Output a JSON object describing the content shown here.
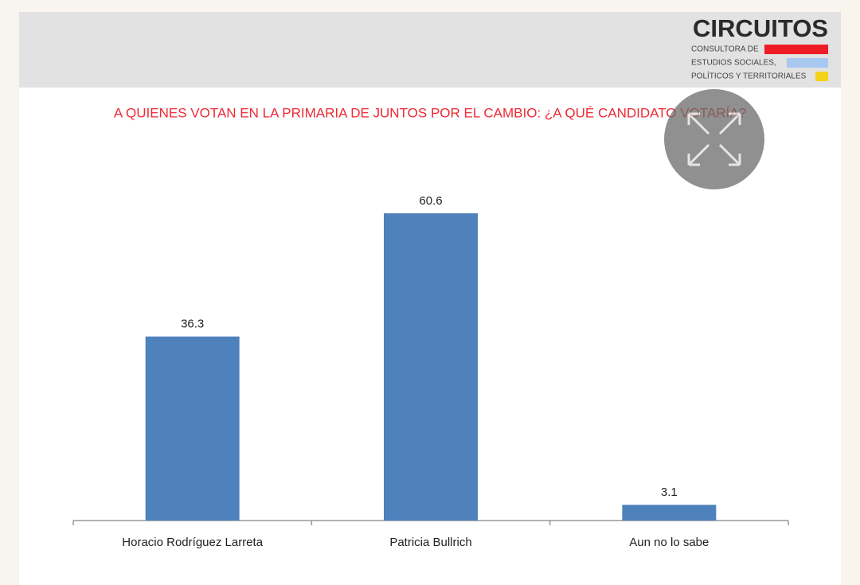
{
  "chart_data": {
    "type": "bar",
    "title": "A QUIENES VOTAN EN LA PRIMARIA DE JUNTOS POR EL CAMBIO: ¿A QUÉ CANDIDATO VOTARÍA?",
    "categories": [
      "Horacio Rodríguez Larreta",
      "Patricia Bullrich",
      "Aun no lo sabe"
    ],
    "values": [
      36.3,
      60.6,
      3.1
    ],
    "color": "#4f81bd"
  },
  "logo": {
    "name": "CIRCUITOS",
    "lines": [
      "CONSULTORA DE",
      "ESTUDIOS SOCIALES,",
      "POLÍTICOS Y TERRITORIALES"
    ]
  }
}
